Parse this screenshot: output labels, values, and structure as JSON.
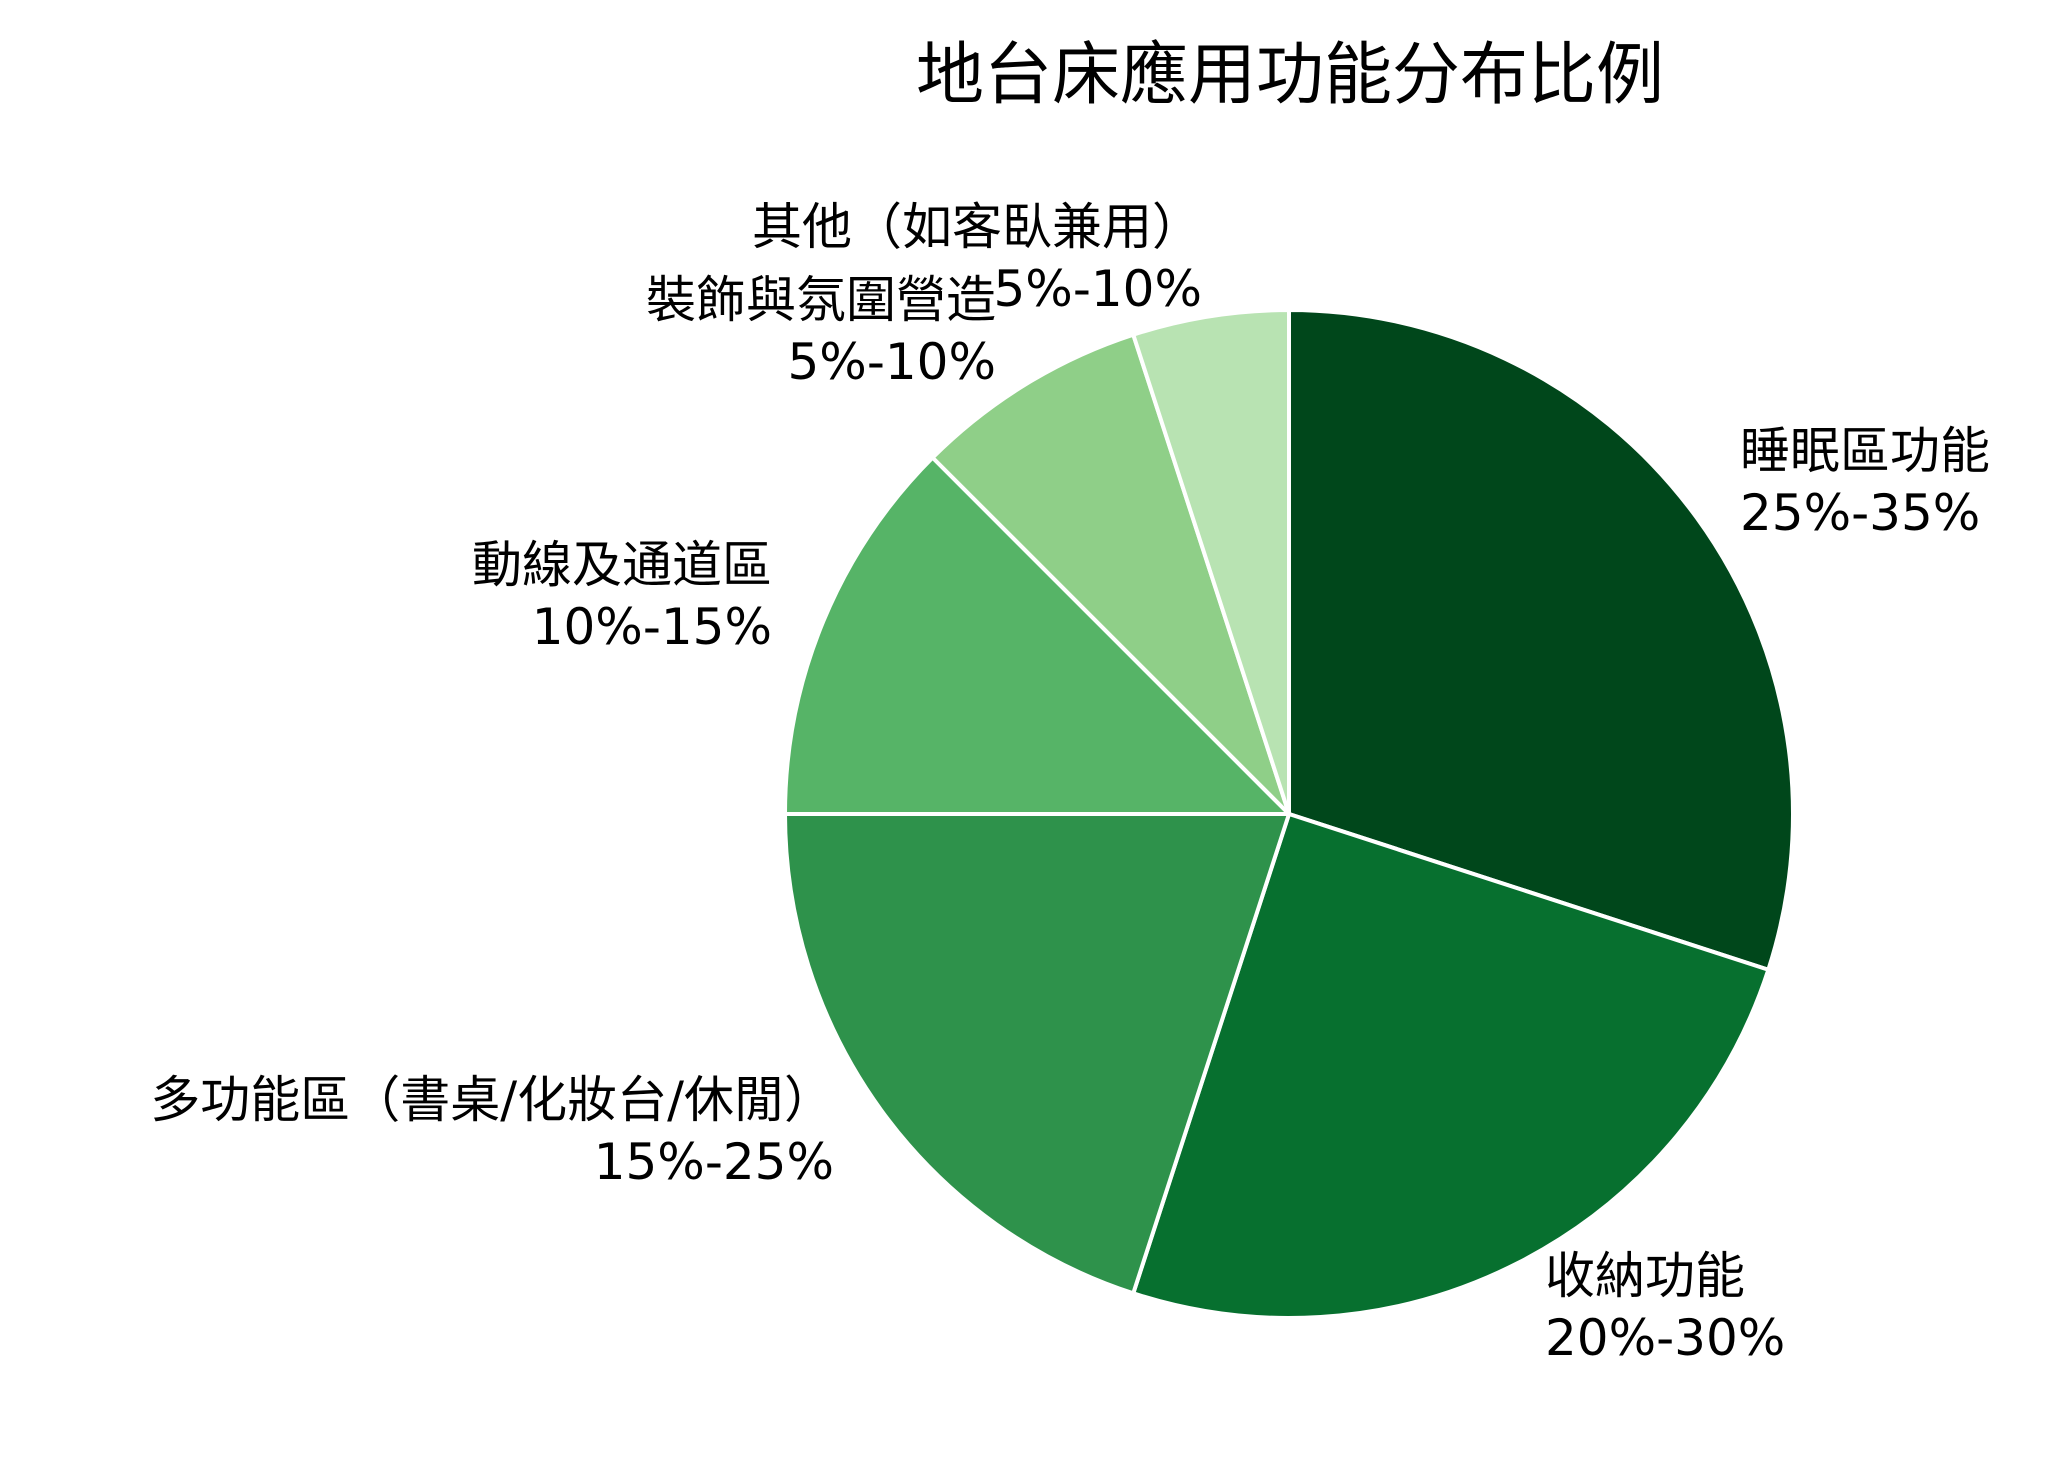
{
  "chart_data": {
    "type": "pie",
    "title": "地台床應用功能分布比例",
    "start_angle_deg": 90,
    "direction": "clockwise",
    "edge_color": "#ffffff",
    "slices": [
      {
        "label": "睡眠區功能",
        "range": "25%-35%",
        "value": 30,
        "color": "#00471b"
      },
      {
        "label": "收納功能",
        "range": "20%-30%",
        "value": 25,
        "color": "#07702f"
      },
      {
        "label": "多功能區（書桌/化妝台/休閒）",
        "range": "15%-25%",
        "value": 20,
        "color": "#2e924b"
      },
      {
        "label": "動線及通道區",
        "range": "10%-15%",
        "value": 12.5,
        "color": "#56b467"
      },
      {
        "label": "裝飾與氛圍營造",
        "range": "5%-10%",
        "value": 7.5,
        "color": "#8fcf88"
      },
      {
        "label": "其他（如客臥兼用）",
        "range": "5%-10%",
        "value": 5,
        "color": "#b8e3b2"
      }
    ]
  }
}
